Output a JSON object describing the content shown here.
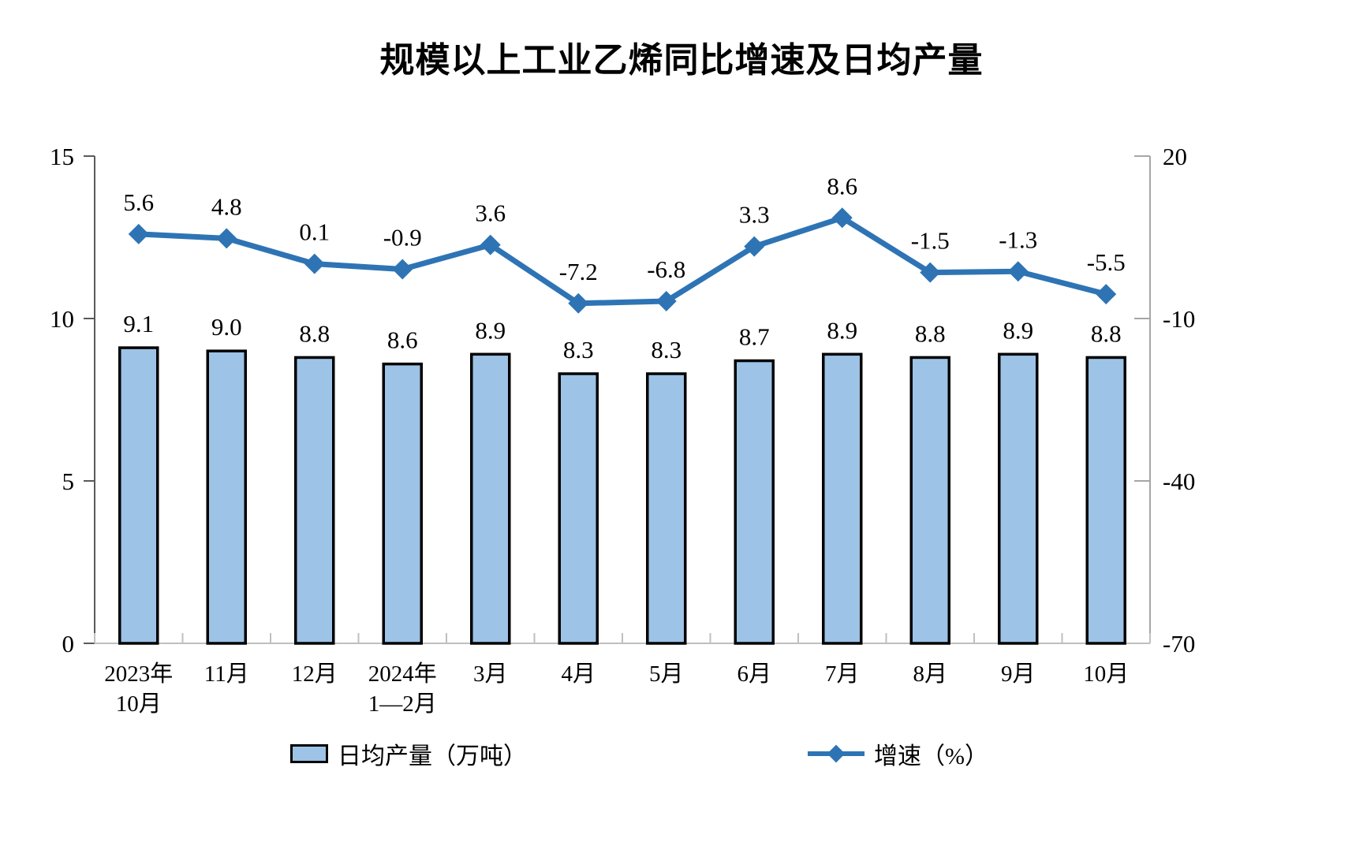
{
  "chart_data": {
    "type": "combo",
    "title": "规模以上工业乙烯同比增速及日均产量",
    "categories": [
      "2023年10月",
      "11月",
      "12月",
      "2024年1—2月",
      "3月",
      "4月",
      "5月",
      "6月",
      "7月",
      "8月",
      "9月",
      "10月"
    ],
    "x_labels": [
      [
        "2023年",
        "10月"
      ],
      [
        "11月"
      ],
      [
        "12月"
      ],
      [
        "2024年",
        "1—2月"
      ],
      [
        "3月"
      ],
      [
        "4月"
      ],
      [
        "5月"
      ],
      [
        "6月"
      ],
      [
        "7月"
      ],
      [
        "8月"
      ],
      [
        "9月"
      ],
      [
        "10月"
      ]
    ],
    "series": [
      {
        "name": "日均产量（万吨）",
        "type": "bar",
        "axis": "left",
        "values": [
          9.1,
          9.0,
          8.8,
          8.6,
          8.9,
          8.3,
          8.3,
          8.7,
          8.9,
          8.8,
          8.9,
          8.8
        ],
        "labels": [
          "9.1",
          "9.0",
          "8.8",
          "8.6",
          "8.9",
          "8.3",
          "8.3",
          "8.7",
          "8.9",
          "8.8",
          "8.9",
          "8.8"
        ]
      },
      {
        "name": "增速（%）",
        "type": "line",
        "axis": "right",
        "values": [
          5.6,
          4.8,
          0.1,
          -0.9,
          3.6,
          -7.2,
          -6.8,
          3.3,
          8.6,
          -1.5,
          -1.3,
          -5.5
        ],
        "labels": [
          "5.6",
          "4.8",
          "0.1",
          "-0.9",
          "3.6",
          "-7.2",
          "-6.8",
          "3.3",
          "8.6",
          "-1.5",
          "-1.3",
          "-5.5"
        ]
      }
    ],
    "left_ylim": [
      0,
      15
    ],
    "right_ylim": [
      -70,
      20
    ],
    "left_ticks": [
      0,
      5,
      10,
      15
    ],
    "right_ticks": [
      20,
      -10,
      -40,
      -70
    ],
    "grid": false,
    "legend_position": "bottom"
  },
  "legend": [
    {
      "label": "日均产量（万吨）"
    },
    {
      "label": "增速（%）"
    }
  ],
  "colors": {
    "bar_fill": "#9DC3E6",
    "bar_border": "#000000",
    "line": "#2E74B5",
    "left_axis": "#595959",
    "right_axis": "#A6A6A6",
    "bottom_axis": "#BFBFBF",
    "label_text": "#000000"
  }
}
